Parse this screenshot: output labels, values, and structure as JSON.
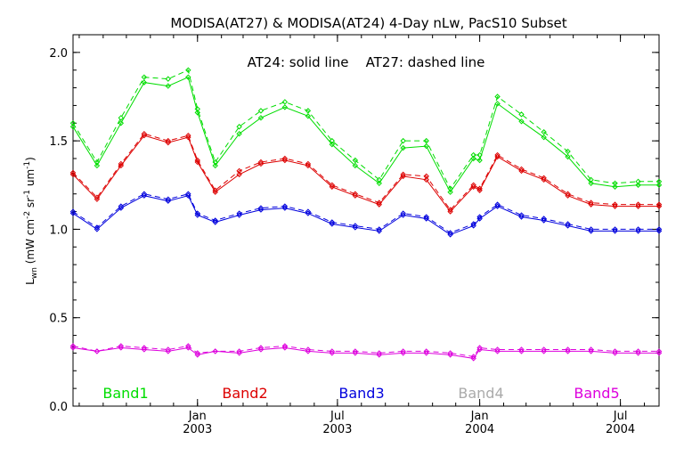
{
  "chart_data": {
    "type": "line",
    "title": "MODISA(AT27) & MODISA(AT24) 4-Day nLw, PacS10 Subset",
    "ylabel": "L_wn (mW cm^-2 sr^-1 um^-1)",
    "ylabel_parts": {
      "main": "L",
      "sub": "wn",
      "open": " (mW cm",
      "sup1": "-2",
      "mid": " sr",
      "sup2": "-1",
      "mid2": " um",
      "sup3": "-1",
      "close": ")"
    },
    "annotation": "AT24: solid line    AT27: dashed line",
    "xlim": [
      "2002-07-24",
      "2004-08-20"
    ],
    "ylim": [
      0.0,
      2.1
    ],
    "y_ticks": [
      "0.0",
      "0.5",
      "1.0",
      "1.5",
      "2.0"
    ],
    "y_tick_values": [
      0.0,
      0.5,
      1.0,
      1.5,
      2.0
    ],
    "x_ticks": [
      {
        "date": "2003-01-01",
        "month": "Jan",
        "year": "2003"
      },
      {
        "date": "2003-07-01",
        "month": "Jul",
        "year": "2003"
      },
      {
        "date": "2004-01-01",
        "month": "Jan",
        "year": "2004"
      },
      {
        "date": "2004-07-01",
        "month": "Jul",
        "year": "2004"
      }
    ],
    "grid": false,
    "legend_position": "bottom",
    "x": [
      "2002-07-24",
      "2002-08-24",
      "2002-09-24",
      "2002-10-24",
      "2002-11-24",
      "2002-12-20",
      "2003-01-01",
      "2003-01-24",
      "2003-02-24",
      "2003-03-24",
      "2003-04-24",
      "2003-05-24",
      "2003-06-24",
      "2003-07-24",
      "2003-08-24",
      "2003-09-24",
      "2003-10-24",
      "2003-11-24",
      "2003-12-24",
      "2004-01-01",
      "2004-01-24",
      "2004-02-24",
      "2004-03-24",
      "2004-04-24",
      "2004-05-24",
      "2004-06-24",
      "2004-07-24",
      "2004-08-20"
    ],
    "series": [
      {
        "name": "Band1",
        "color": "#00dd00",
        "solid": [
          1.58,
          1.36,
          1.6,
          1.83,
          1.81,
          1.86,
          1.66,
          1.36,
          1.54,
          1.63,
          1.69,
          1.64,
          1.48,
          1.36,
          1.26,
          1.46,
          1.47,
          1.21,
          1.4,
          1.39,
          1.71,
          1.61,
          1.52,
          1.41,
          1.26,
          1.24,
          1.25,
          1.25
        ],
        "dashed": [
          1.6,
          1.38,
          1.63,
          1.86,
          1.85,
          1.9,
          1.68,
          1.38,
          1.58,
          1.67,
          1.72,
          1.67,
          1.5,
          1.39,
          1.28,
          1.5,
          1.5,
          1.23,
          1.42,
          1.42,
          1.75,
          1.65,
          1.55,
          1.44,
          1.28,
          1.26,
          1.27,
          1.27
        ]
      },
      {
        "name": "Band2",
        "color": "#dd0000",
        "solid": [
          1.31,
          1.17,
          1.36,
          1.53,
          1.49,
          1.52,
          1.38,
          1.21,
          1.31,
          1.37,
          1.39,
          1.36,
          1.24,
          1.19,
          1.14,
          1.3,
          1.28,
          1.1,
          1.24,
          1.22,
          1.41,
          1.33,
          1.28,
          1.19,
          1.14,
          1.13,
          1.13,
          1.13
        ],
        "dashed": [
          1.32,
          1.18,
          1.37,
          1.54,
          1.5,
          1.53,
          1.39,
          1.22,
          1.33,
          1.38,
          1.4,
          1.37,
          1.25,
          1.2,
          1.15,
          1.31,
          1.3,
          1.11,
          1.25,
          1.23,
          1.42,
          1.34,
          1.29,
          1.2,
          1.15,
          1.14,
          1.14,
          1.14
        ]
      },
      {
        "name": "Band3",
        "color": "#0000dd",
        "solid": [
          1.09,
          1.0,
          1.12,
          1.19,
          1.16,
          1.19,
          1.08,
          1.04,
          1.08,
          1.11,
          1.12,
          1.09,
          1.03,
          1.01,
          0.99,
          1.08,
          1.06,
          0.97,
          1.02,
          1.06,
          1.13,
          1.07,
          1.05,
          1.02,
          0.99,
          0.99,
          0.99,
          0.99
        ],
        "dashed": [
          1.1,
          1.01,
          1.13,
          1.2,
          1.17,
          1.2,
          1.09,
          1.05,
          1.09,
          1.12,
          1.13,
          1.1,
          1.04,
          1.02,
          1.0,
          1.09,
          1.07,
          0.98,
          1.03,
          1.07,
          1.14,
          1.08,
          1.06,
          1.03,
          1.0,
          1.0,
          1.0,
          1.0
        ]
      },
      {
        "name": "Band4",
        "color": "#aaaaaa",
        "solid": [],
        "dashed": []
      },
      {
        "name": "Band5",
        "color": "#dd00dd",
        "solid": [
          0.33,
          0.31,
          0.33,
          0.32,
          0.31,
          0.33,
          0.29,
          0.31,
          0.3,
          0.32,
          0.33,
          0.31,
          0.3,
          0.3,
          0.29,
          0.3,
          0.3,
          0.29,
          0.27,
          0.32,
          0.31,
          0.31,
          0.31,
          0.31,
          0.31,
          0.3,
          0.3,
          0.3
        ],
        "dashed": [
          0.34,
          0.31,
          0.34,
          0.33,
          0.32,
          0.34,
          0.3,
          0.31,
          0.31,
          0.33,
          0.34,
          0.32,
          0.31,
          0.31,
          0.3,
          0.31,
          0.31,
          0.3,
          0.28,
          0.33,
          0.32,
          0.32,
          0.32,
          0.32,
          0.32,
          0.31,
          0.31,
          0.31
        ]
      }
    ]
  }
}
